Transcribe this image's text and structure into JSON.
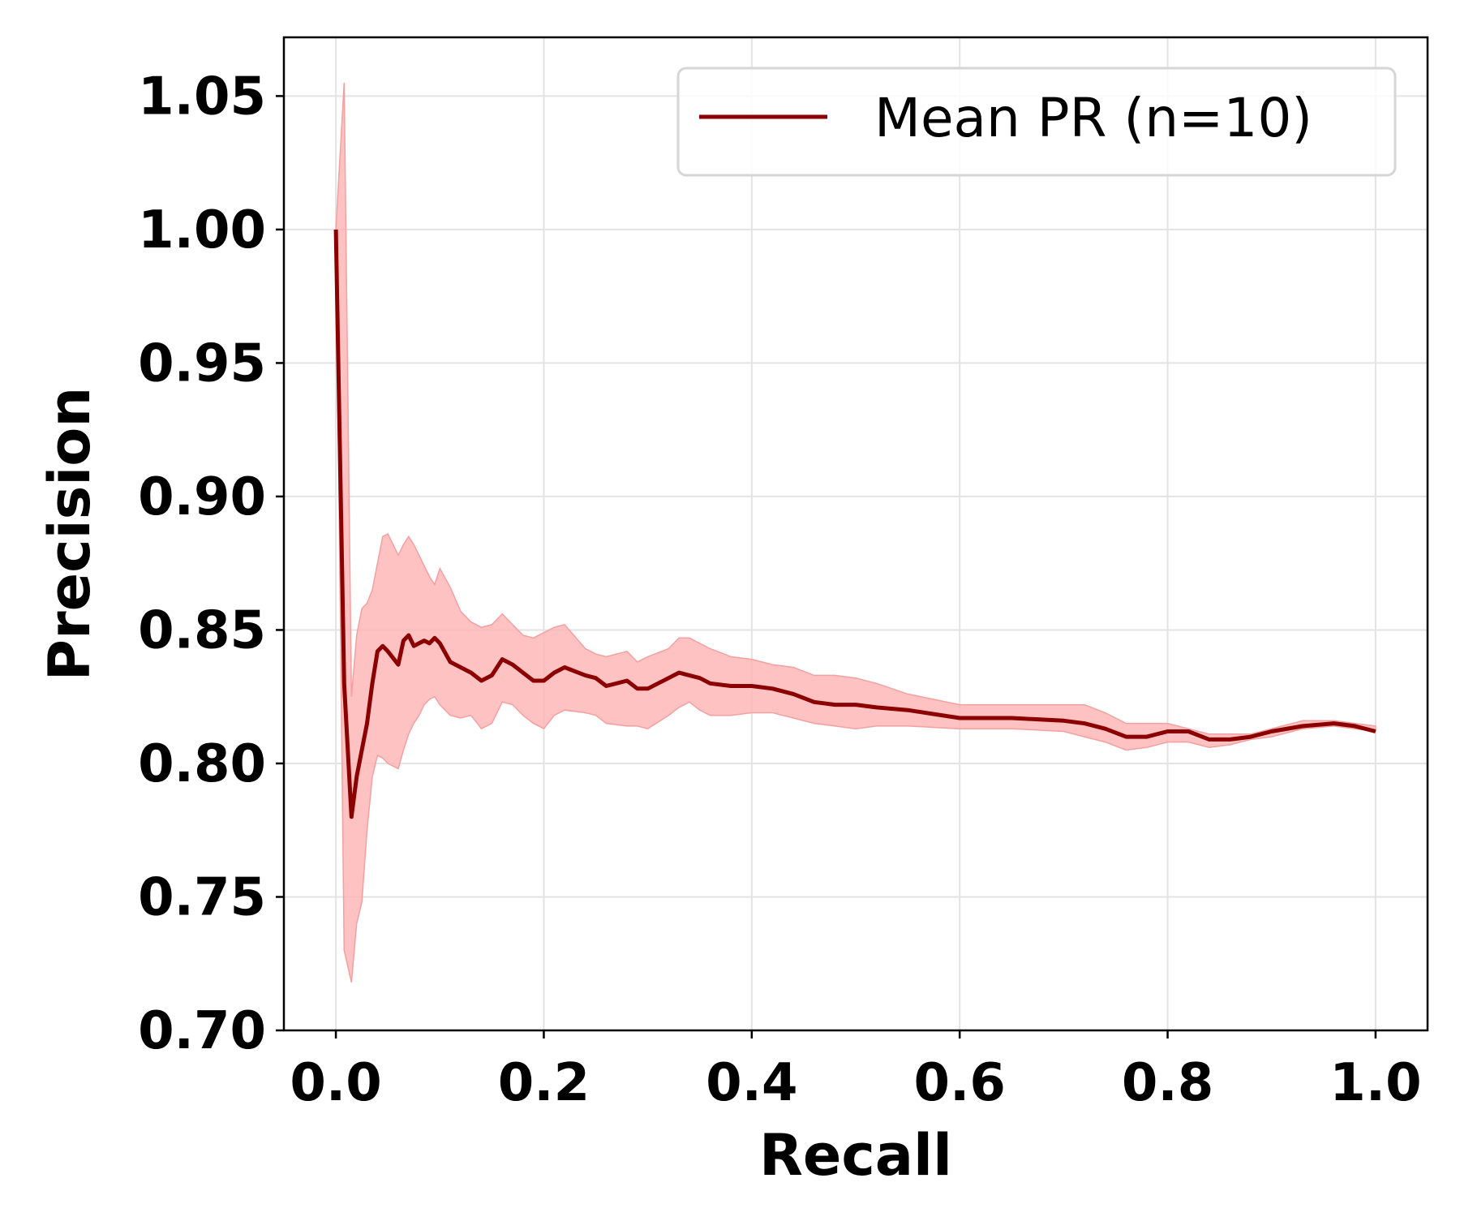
{
  "chart_data": {
    "type": "line",
    "xlabel": "Recall",
    "ylabel": "Precision",
    "xlim": [
      -0.05,
      1.05
    ],
    "ylim": [
      0.7,
      1.072
    ],
    "x_ticks": [
      "0.0",
      "0.2",
      "0.4",
      "0.6",
      "0.8",
      "1.0"
    ],
    "y_ticks": [
      "0.70",
      "0.75",
      "0.80",
      "0.85",
      "0.90",
      "0.95",
      "1.00",
      "1.05"
    ],
    "grid": true,
    "legend_position": "top-right",
    "colors": {
      "line": "#8b0000",
      "band": "#ffb3b3",
      "band_edge": "#f4a0a0",
      "grid": "#e3e3e3"
    },
    "series": [
      {
        "name": "Mean PR (n=10)",
        "x": [
          0.0,
          0.008,
          0.015,
          0.02,
          0.025,
          0.03,
          0.035,
          0.04,
          0.045,
          0.05,
          0.06,
          0.065,
          0.07,
          0.075,
          0.08,
          0.085,
          0.09,
          0.095,
          0.1,
          0.11,
          0.12,
          0.13,
          0.14,
          0.15,
          0.16,
          0.17,
          0.18,
          0.19,
          0.2,
          0.21,
          0.22,
          0.24,
          0.25,
          0.26,
          0.28,
          0.29,
          0.3,
          0.32,
          0.33,
          0.34,
          0.35,
          0.36,
          0.38,
          0.4,
          0.42,
          0.44,
          0.46,
          0.48,
          0.5,
          0.52,
          0.55,
          0.6,
          0.65,
          0.7,
          0.72,
          0.74,
          0.76,
          0.78,
          0.8,
          0.82,
          0.84,
          0.86,
          0.88,
          0.9,
          0.93,
          0.96,
          0.98,
          1.0
        ],
        "values": [
          1.0,
          0.83,
          0.78,
          0.795,
          0.805,
          0.815,
          0.83,
          0.842,
          0.844,
          0.842,
          0.837,
          0.846,
          0.848,
          0.844,
          0.845,
          0.846,
          0.845,
          0.847,
          0.845,
          0.838,
          0.836,
          0.834,
          0.831,
          0.833,
          0.839,
          0.837,
          0.834,
          0.831,
          0.831,
          0.834,
          0.836,
          0.833,
          0.832,
          0.829,
          0.831,
          0.828,
          0.828,
          0.832,
          0.834,
          0.833,
          0.832,
          0.83,
          0.829,
          0.829,
          0.828,
          0.826,
          0.823,
          0.822,
          0.822,
          0.821,
          0.82,
          0.817,
          0.817,
          0.816,
          0.815,
          0.813,
          0.81,
          0.81,
          0.812,
          0.812,
          0.809,
          0.809,
          0.81,
          0.812,
          0.814,
          0.815,
          0.814,
          0.812
        ],
        "band_upper": [
          1.0,
          1.055,
          0.825,
          0.848,
          0.858,
          0.86,
          0.865,
          0.875,
          0.885,
          0.886,
          0.878,
          0.882,
          0.885,
          0.882,
          0.878,
          0.874,
          0.87,
          0.867,
          0.873,
          0.866,
          0.857,
          0.853,
          0.851,
          0.852,
          0.856,
          0.852,
          0.848,
          0.847,
          0.849,
          0.851,
          0.852,
          0.843,
          0.841,
          0.84,
          0.842,
          0.838,
          0.84,
          0.843,
          0.847,
          0.847,
          0.845,
          0.843,
          0.84,
          0.839,
          0.837,
          0.836,
          0.833,
          0.833,
          0.832,
          0.83,
          0.826,
          0.822,
          0.822,
          0.822,
          0.822,
          0.819,
          0.815,
          0.815,
          0.815,
          0.813,
          0.811,
          0.811,
          0.811,
          0.813,
          0.816,
          0.816,
          0.815,
          0.814
        ],
        "band_lower": [
          1.0,
          0.73,
          0.718,
          0.74,
          0.748,
          0.775,
          0.795,
          0.803,
          0.802,
          0.8,
          0.798,
          0.805,
          0.811,
          0.815,
          0.818,
          0.822,
          0.824,
          0.825,
          0.822,
          0.818,
          0.817,
          0.818,
          0.813,
          0.815,
          0.823,
          0.822,
          0.818,
          0.815,
          0.813,
          0.818,
          0.82,
          0.819,
          0.818,
          0.815,
          0.814,
          0.814,
          0.813,
          0.818,
          0.821,
          0.823,
          0.82,
          0.818,
          0.818,
          0.819,
          0.819,
          0.817,
          0.815,
          0.814,
          0.813,
          0.814,
          0.814,
          0.813,
          0.813,
          0.812,
          0.81,
          0.808,
          0.805,
          0.806,
          0.808,
          0.808,
          0.806,
          0.807,
          0.809,
          0.81,
          0.813,
          0.814,
          0.813,
          0.812
        ]
      }
    ]
  }
}
